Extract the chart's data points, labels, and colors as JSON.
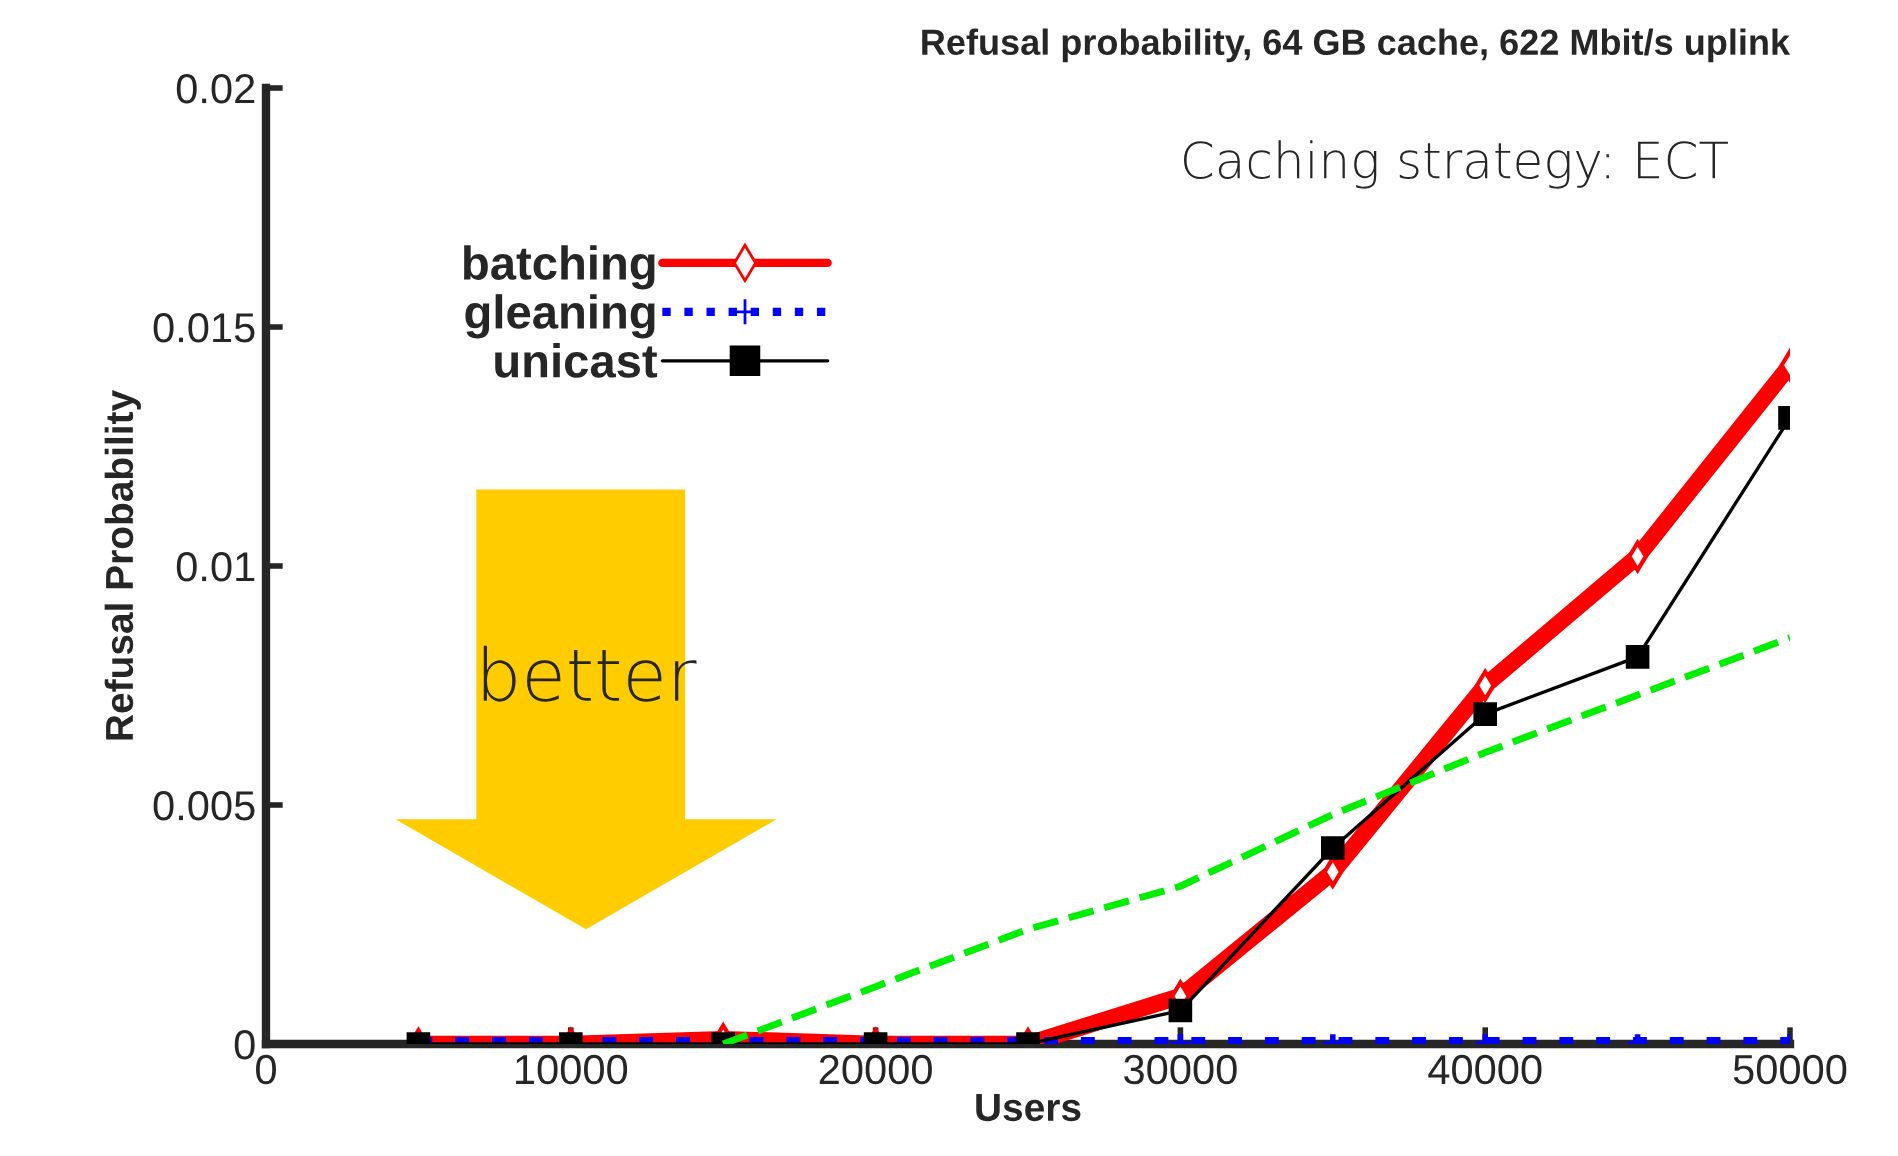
{
  "chart_data": {
    "type": "line",
    "title": "Refusal probability, 64 GB cache, 622 Mbit/s uplink",
    "xlabel": "Users",
    "ylabel": "Refusal Probability",
    "x": [
      5000,
      10000,
      15000,
      20000,
      25000,
      30000,
      35000,
      40000,
      45000,
      50000
    ],
    "series": [
      {
        "name": "batching",
        "color": "#ff0000",
        "marker": "diamond",
        "line_style": "solid",
        "values": [
          0,
          0,
          0.0001,
          0,
          0,
          0.001,
          0.0036,
          0.0075,
          0.0102,
          0.0142
        ]
      },
      {
        "name": "gleaning",
        "color": "#0000ff",
        "marker": "cross",
        "line_style": "dotted",
        "values": [
          0,
          0,
          0,
          0,
          0,
          0,
          0,
          0,
          0,
          0
        ]
      },
      {
        "name": "unicast",
        "color": "#000000",
        "marker": "square",
        "line_style": "solid",
        "values": [
          0,
          0,
          0,
          0,
          0,
          0.0007,
          0.0041,
          0.0069,
          0.0081,
          0.0131
        ]
      },
      {
        "color": "#00ee00",
        "marker": "none",
        "line_style": "dashed",
        "x": [
          15000,
          20000,
          25000,
          30000,
          35000,
          40000,
          45000,
          50000
        ],
        "values": [
          0,
          0.0012,
          0.0024,
          0.0033,
          0.0048,
          0.0061,
          0.0073,
          0.0085
        ]
      }
    ],
    "xlim": [
      0,
      50000
    ],
    "xticks": [
      0,
      10000,
      20000,
      30000,
      40000,
      50000
    ],
    "ylim": [
      0,
      0.02
    ],
    "yticks": [
      0,
      0.005,
      0.01,
      0.015,
      0.02
    ],
    "grid": false,
    "legend": "top left",
    "annotations": [
      "Caching strategy: ECT",
      "better"
    ]
  }
}
